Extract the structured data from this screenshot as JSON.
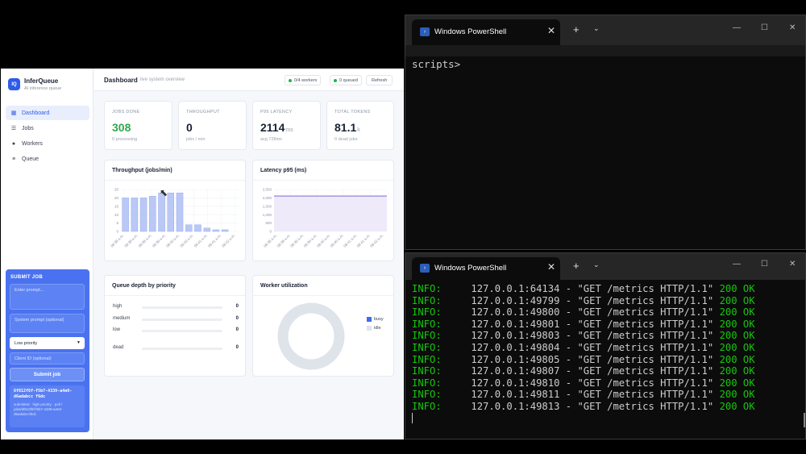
{
  "app": {
    "brand": {
      "logo": "IQ",
      "name": "InferQueue",
      "subtitle": "AI inference queue"
    },
    "nav": [
      {
        "label": "Dashboard",
        "icon": "grid-icon",
        "active": true
      },
      {
        "label": "Jobs",
        "icon": "list-icon",
        "active": false
      },
      {
        "label": "Workers",
        "icon": "user-icon",
        "active": false
      },
      {
        "label": "Queue",
        "icon": "queue-icon",
        "active": false
      }
    ],
    "submit": {
      "title": "SUBMIT JOB",
      "prompt_placeholder": "Enter prompt...",
      "system_placeholder": "System prompt (optional)",
      "priority_value": "Low priority",
      "client_placeholder": "Client ID (optional)",
      "button": "Submit job",
      "result_id": "6f812f6f-f5b7-4339-a4e0-d6adabcc f6dc",
      "result_meta": "submitted · high priority · poll / jobs/6f812f6f-f5b7-4339-a4e0-d6adabccf6dc"
    },
    "header": {
      "title": "Dashboard",
      "subtitle": "live system overview",
      "workers_pill": "0/4 workers",
      "queued_pill": "0 queued",
      "refresh": "Refresh"
    },
    "stats": [
      {
        "label": "JOBS DONE",
        "value": "308",
        "unit": "",
        "sub": "0 processing",
        "color": "#2fa84f"
      },
      {
        "label": "THROUGHPUT",
        "value": "0",
        "unit": "",
        "sub": "jobs / min",
        "color": "#1a2233"
      },
      {
        "label": "P95 LATENCY",
        "value": "2114",
        "unit": "ms",
        "sub": "avg 728ms",
        "color": "#1a2233"
      },
      {
        "label": "TOTAL TOKENS",
        "value": "81.1",
        "unit": "k",
        "sub": "0 dead jobs",
        "color": "#1a2233"
      }
    ],
    "queue_card": {
      "title": "Queue depth by priority",
      "rows": [
        {
          "label": "high",
          "count": "0"
        },
        {
          "label": "medium",
          "count": "0"
        },
        {
          "label": "low",
          "count": "0"
        },
        {
          "label": "dead",
          "count": "0"
        }
      ]
    },
    "worker_card": {
      "title": "Worker utilization",
      "legend_busy": "busy",
      "legend_idle": "idle",
      "busy_color": "#3d6cf0",
      "idle_color": "#dfe3ea",
      "busy_fraction": 0
    }
  },
  "chart_data": [
    {
      "type": "bar",
      "title": "Throughput (jobs/min)",
      "categories": [
        "08:38 a.m.",
        "08:38 a.m.",
        "08:39 a.m.",
        "08:39 a.m.",
        "08:39 a.m.",
        "08:40 a.m.",
        "08:40 a.m.",
        "08:40 a.m.",
        "08:41 a.m.",
        "08:41 a.m.",
        "08:41 a.m.",
        "08:42 a.m.",
        "08:42 a.m."
      ],
      "values": [
        20,
        20,
        20,
        21,
        23,
        23,
        23,
        4,
        4,
        2,
        1,
        1,
        0
      ],
      "yticks": [
        "0",
        "5",
        "10",
        "15",
        "20",
        "25"
      ],
      "xticks": [
        "08:38 a.m.",
        "08:38 a.m.",
        "08:39 a.m.",
        "08:39 a.m.",
        "08:40 a.m.",
        "08:40 a.m.",
        "08:41 a.m.",
        "08:41 a.m.",
        "08:42 a.m."
      ],
      "ylim": [
        0,
        25
      ],
      "color": "#b9c8f5",
      "grid": true
    },
    {
      "type": "line",
      "title": "Latency p95 (ms)",
      "values": [
        2114,
        2114,
        2114,
        2113,
        2113,
        2114,
        2114,
        2114,
        2114,
        2114,
        2114,
        2114,
        2114,
        2114,
        2114
      ],
      "yticks": [
        "0",
        "500",
        "1,000",
        "1,500",
        "2,000",
        "2,500"
      ],
      "xticks": [
        "08:38 a.m.",
        "08:38 a.m.",
        "08:39 a.m.",
        "08:39 a.m.",
        "08:40 a.m.",
        "08:40 a.m.",
        "08:41 a.m.",
        "08:41 a.m.",
        "08:42 a.m."
      ],
      "ylim": [
        0,
        2500
      ],
      "color": "#6b56c9",
      "fill": "#ece8f8",
      "grid": true
    }
  ],
  "terminals": {
    "top": {
      "title": "Windows PowerShell",
      "prompt": "scripts>"
    },
    "bottom": {
      "title": "Windows PowerShell",
      "lines": [
        {
          "level": "INFO:",
          "addr": "127.0.0.1:64134",
          "request": "\"GET /metrics HTTP/1.1\"",
          "status": "200 OK"
        },
        {
          "level": "INFO:",
          "addr": "127.0.0.1:49799",
          "request": "\"GET /metrics HTTP/1.1\"",
          "status": "200 OK"
        },
        {
          "level": "INFO:",
          "addr": "127.0.0.1:49800",
          "request": "\"GET /metrics HTTP/1.1\"",
          "status": "200 OK"
        },
        {
          "level": "INFO:",
          "addr": "127.0.0.1:49801",
          "request": "\"GET /metrics HTTP/1.1\"",
          "status": "200 OK"
        },
        {
          "level": "INFO:",
          "addr": "127.0.0.1:49803",
          "request": "\"GET /metrics HTTP/1.1\"",
          "status": "200 OK"
        },
        {
          "level": "INFO:",
          "addr": "127.0.0.1:49804",
          "request": "\"GET /metrics HTTP/1.1\"",
          "status": "200 OK"
        },
        {
          "level": "INFO:",
          "addr": "127.0.0.1:49805",
          "request": "\"GET /metrics HTTP/1.1\"",
          "status": "200 OK"
        },
        {
          "level": "INFO:",
          "addr": "127.0.0.1:49807",
          "request": "\"GET /metrics HTTP/1.1\"",
          "status": "200 OK"
        },
        {
          "level": "INFO:",
          "addr": "127.0.0.1:49810",
          "request": "\"GET /metrics HTTP/1.1\"",
          "status": "200 OK"
        },
        {
          "level": "INFO:",
          "addr": "127.0.0.1:49811",
          "request": "\"GET /metrics HTTP/1.1\"",
          "status": "200 OK"
        },
        {
          "level": "INFO:",
          "addr": "127.0.0.1:49813",
          "request": "\"GET /metrics HTTP/1.1\"",
          "status": "200 OK"
        }
      ]
    }
  }
}
